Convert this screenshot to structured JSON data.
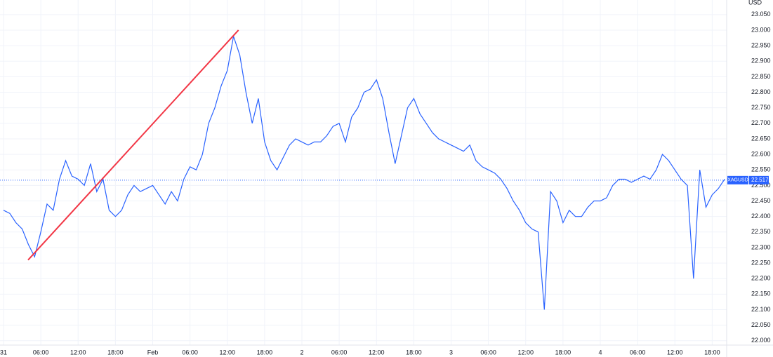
{
  "chart_data": {
    "type": "line",
    "axis_unit": "USD",
    "x": [
      0,
      1,
      2,
      3,
      4,
      5,
      6,
      7,
      8,
      9,
      10,
      11,
      12,
      13,
      14,
      15,
      16,
      17,
      18,
      19,
      20,
      21,
      22,
      23,
      24,
      25,
      26,
      27,
      28,
      29,
      30,
      31,
      32,
      33,
      34,
      35,
      36,
      37,
      38,
      39,
      40,
      41,
      42,
      43,
      44,
      45,
      46,
      47,
      48,
      49,
      50,
      51,
      52,
      53,
      54,
      55,
      56,
      57,
      58,
      59,
      60,
      61,
      62,
      63,
      64,
      65,
      66,
      67,
      68,
      69,
      70,
      71,
      72,
      73,
      74,
      75,
      76,
      77,
      78,
      79,
      80,
      81,
      82,
      83,
      84,
      85,
      86,
      87,
      88,
      89,
      90,
      91,
      92,
      93,
      94,
      95,
      96,
      97,
      98,
      99,
      100,
      101,
      102,
      103,
      104,
      105,
      106,
      107,
      108,
      109,
      110,
      111,
      112,
      113,
      114,
      115,
      116
    ],
    "series": [
      {
        "name": "XAGUSD",
        "color": "#2962ff",
        "values": [
          22.42,
          22.41,
          22.38,
          22.36,
          22.31,
          22.27,
          22.35,
          22.44,
          22.42,
          22.52,
          22.58,
          22.53,
          22.52,
          22.5,
          22.57,
          22.48,
          22.52,
          22.42,
          22.4,
          22.42,
          22.47,
          22.5,
          22.48,
          22.49,
          22.5,
          22.47,
          22.44,
          22.48,
          22.45,
          22.52,
          22.56,
          22.55,
          22.6,
          22.7,
          22.75,
          22.82,
          22.87,
          22.98,
          22.92,
          22.8,
          22.7,
          22.78,
          22.64,
          22.58,
          22.55,
          22.59,
          22.63,
          22.65,
          22.64,
          22.63,
          22.64,
          22.64,
          22.66,
          22.69,
          22.7,
          22.64,
          22.72,
          22.75,
          22.8,
          22.81,
          22.84,
          22.78,
          22.67,
          22.57,
          22.66,
          22.75,
          22.78,
          22.73,
          22.7,
          22.67,
          22.65,
          22.64,
          22.63,
          22.62,
          22.61,
          22.63,
          22.58,
          22.56,
          22.55,
          22.54,
          22.52,
          22.49,
          22.45,
          22.42,
          22.38,
          22.36,
          22.35,
          22.1,
          22.48,
          22.45,
          22.38,
          22.42,
          22.4,
          22.4,
          22.43,
          22.45,
          22.45,
          22.46,
          22.5,
          22.52,
          22.52,
          22.51,
          22.52,
          22.53,
          22.52,
          22.55,
          22.6,
          22.58,
          22.55,
          22.52,
          22.5,
          22.2,
          22.55,
          22.43,
          22.47,
          22.49,
          22.52
        ]
      }
    ],
    "trendline": {
      "color": "#f23645",
      "x": [
        3.95,
        37.8
      ],
      "values": [
        22.26,
        23.0
      ]
    },
    "last_price": 22.517,
    "xlim": [
      -0.565,
      116.33
    ],
    "xticks": [
      {
        "value": 0,
        "label": "31"
      },
      {
        "value": 6,
        "label": "06:00"
      },
      {
        "value": 12,
        "label": "12:00"
      },
      {
        "value": 18,
        "label": "18:00"
      },
      {
        "value": 24,
        "label": "Feb"
      },
      {
        "value": 30,
        "label": "06:00"
      },
      {
        "value": 36,
        "label": "12:00"
      },
      {
        "value": 42,
        "label": "18:00"
      },
      {
        "value": 48,
        "label": "2"
      },
      {
        "value": 54,
        "label": "06:00"
      },
      {
        "value": 60,
        "label": "12:00"
      },
      {
        "value": 66,
        "label": "18:00"
      },
      {
        "value": 72,
        "label": "3"
      },
      {
        "value": 78,
        "label": "06:00"
      },
      {
        "value": 84,
        "label": "12:00"
      },
      {
        "value": 90,
        "label": "18:00"
      },
      {
        "value": 96,
        "label": "4"
      },
      {
        "value": 102,
        "label": "06:00"
      },
      {
        "value": 108,
        "label": "12:00"
      },
      {
        "value": 114,
        "label": "18:00"
      }
    ],
    "ylim": [
      21.986,
      23.097
    ],
    "yticks": [
      {
        "value": 22.0,
        "label": "22.000"
      },
      {
        "value": 22.05,
        "label": "22.050"
      },
      {
        "value": 22.1,
        "label": "22.100"
      },
      {
        "value": 22.15,
        "label": "22.150"
      },
      {
        "value": 22.2,
        "label": "22.200"
      },
      {
        "value": 22.25,
        "label": "22.250"
      },
      {
        "value": 22.3,
        "label": "22.300"
      },
      {
        "value": 22.35,
        "label": "22.350"
      },
      {
        "value": 22.4,
        "label": "22.400"
      },
      {
        "value": 22.45,
        "label": "22.450"
      },
      {
        "value": 22.5,
        "label": "22.500"
      },
      {
        "value": 22.55,
        "label": "22.550"
      },
      {
        "value": 22.6,
        "label": "22.600"
      },
      {
        "value": 22.65,
        "label": "22.650"
      },
      {
        "value": 22.7,
        "label": "22.700"
      },
      {
        "value": 22.75,
        "label": "22.750"
      },
      {
        "value": 22.8,
        "label": "22.800"
      },
      {
        "value": 22.85,
        "label": "22.850"
      },
      {
        "value": 22.9,
        "label": "22.900"
      },
      {
        "value": 22.95,
        "label": "22.950"
      },
      {
        "value": 23.0,
        "label": "23.000"
      },
      {
        "value": 23.05,
        "label": "23.050"
      }
    ],
    "grid": true
  }
}
